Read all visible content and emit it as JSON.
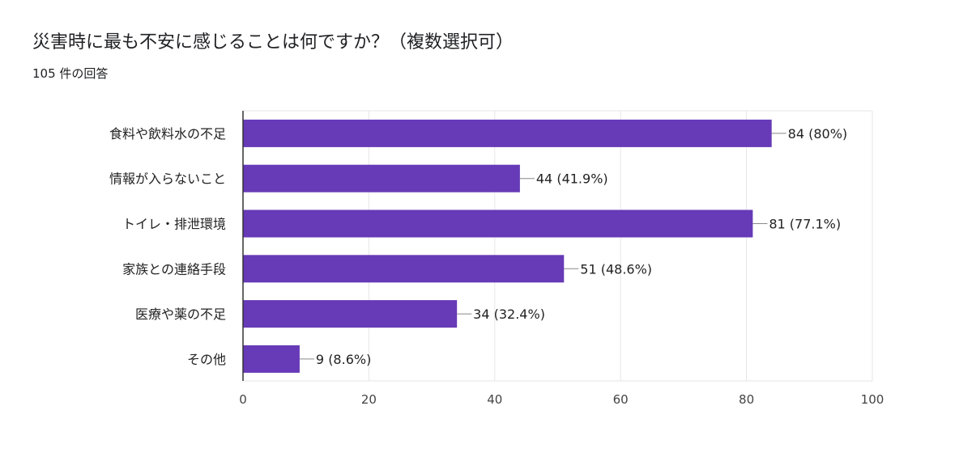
{
  "header": {
    "question": "災害時に最も不安に感じることは何ですか？（複数選択可）",
    "response_count": "105 件の回答"
  },
  "chart_data": {
    "type": "bar",
    "orientation": "horizontal",
    "categories": [
      "食料や飲料水の不足",
      "情報が入らないこと",
      "トイレ・排泄環境",
      "家族との連絡手段",
      "医療や薬の不足",
      "その他"
    ],
    "values": [
      84,
      44,
      81,
      51,
      34,
      9
    ],
    "value_labels": [
      "84 (80%)",
      "44 (41.9%)",
      "81 (77.1%)",
      "51 (48.6%)",
      "34 (32.4%)",
      "9 (8.6%)"
    ],
    "xlim": [
      0,
      100
    ],
    "x_ticks": [
      0,
      20,
      40,
      60,
      80,
      100
    ],
    "x_tick_labels": [
      "0",
      "20",
      "40",
      "60",
      "80",
      "100"
    ],
    "grid": true,
    "bar_color": "#673ab7"
  }
}
